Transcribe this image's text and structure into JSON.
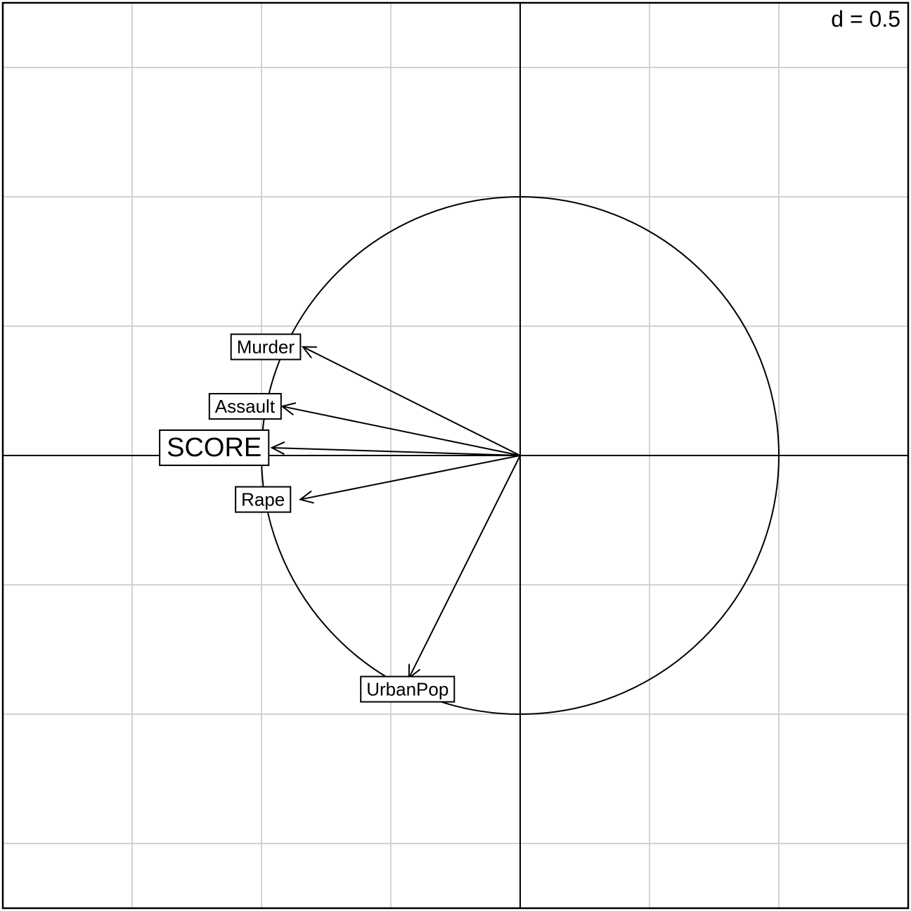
{
  "chart_data": {
    "type": "scatter",
    "subtype": "correlation-circle",
    "scale_label": "d = 0.5",
    "grid_step": 0.5,
    "grid": true,
    "xlim": [
      -2.0,
      1.5
    ],
    "ylim": [
      -1.75,
      1.75
    ],
    "circle_radius": 1.0,
    "variables": [
      {
        "name": "Murder",
        "x": -0.84,
        "y": 0.42,
        "emphasis": false
      },
      {
        "name": "Assault",
        "x": -0.92,
        "y": 0.19,
        "emphasis": false
      },
      {
        "name": "SCORE",
        "x": -0.96,
        "y": 0.03,
        "emphasis": true
      },
      {
        "name": "Rape",
        "x": -0.85,
        "y": -0.17,
        "emphasis": false
      },
      {
        "name": "UrbanPop",
        "x": -0.43,
        "y": -0.86,
        "emphasis": false
      }
    ]
  }
}
